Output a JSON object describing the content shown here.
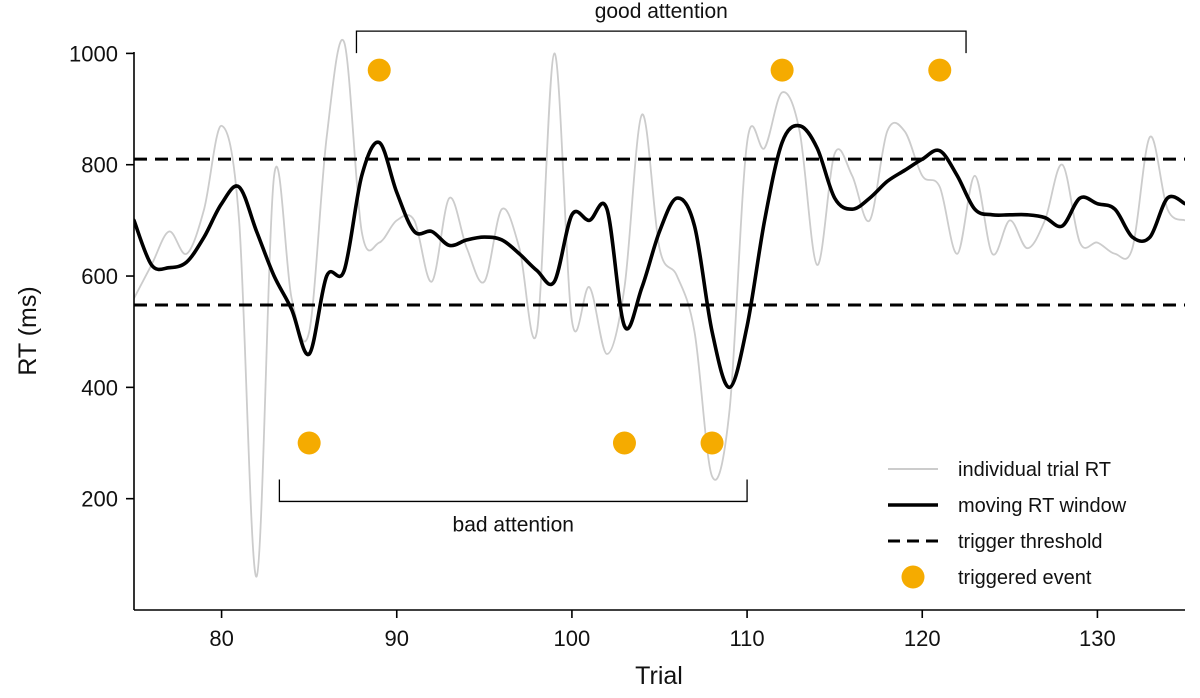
{
  "chart_data": {
    "type": "line",
    "xlabel": "Trial",
    "ylabel": "RT (ms)",
    "xlim": [
      75,
      135
    ],
    "ylim": [
      0,
      1060
    ],
    "xticks": [
      80,
      90,
      100,
      110,
      120,
      130
    ],
    "xtick_labels": [
      "80",
      "90",
      "100",
      "110",
      "120",
      "130"
    ],
    "yticks": [
      200,
      400,
      600,
      800,
      1000
    ],
    "ytick_labels": [
      "200",
      "400",
      "600",
      "800",
      "1000"
    ],
    "grid": false,
    "legend_position": "bottom-right",
    "colors": {
      "individual": "#cccccc",
      "moving": "#000000",
      "threshold": "#000000",
      "event": "#f5ab00"
    },
    "series": [
      {
        "name": "individual trial RT",
        "style": "thin-gray",
        "x": [
          75,
          76,
          77,
          78,
          79,
          80,
          81,
          82,
          83,
          84,
          85,
          86,
          87,
          88,
          89,
          90,
          91,
          92,
          93,
          94,
          95,
          96,
          97,
          98,
          99,
          100,
          101,
          102,
          103,
          104,
          105,
          106,
          107,
          108,
          109,
          110,
          111,
          112,
          113,
          114,
          115,
          116,
          117,
          118,
          119,
          120,
          121,
          122,
          123,
          124,
          125,
          126,
          127,
          128,
          129,
          130,
          131,
          132,
          133,
          134,
          135
        ],
        "y": [
          560,
          620,
          680,
          640,
          720,
          870,
          700,
          60,
          780,
          560,
          500,
          850,
          1020,
          680,
          660,
          700,
          700,
          590,
          740,
          650,
          590,
          720,
          650,
          500,
          1000,
          520,
          580,
          460,
          580,
          890,
          650,
          600,
          500,
          240,
          360,
          840,
          830,
          930,
          860,
          620,
          820,
          780,
          700,
          860,
          860,
          780,
          760,
          640,
          780,
          640,
          700,
          650,
          700,
          800,
          660,
          660,
          640,
          650,
          850,
          720,
          700
        ]
      },
      {
        "name": "moving RT window",
        "style": "thick-black",
        "x": [
          75,
          76,
          77,
          78,
          79,
          80,
          81,
          82,
          83,
          84,
          85,
          86,
          87,
          88,
          89,
          90,
          91,
          92,
          93,
          94,
          95,
          96,
          97,
          98,
          99,
          100,
          101,
          102,
          103,
          104,
          105,
          106,
          107,
          108,
          109,
          110,
          111,
          112,
          113,
          114,
          115,
          116,
          117,
          118,
          119,
          120,
          121,
          122,
          123,
          124,
          125,
          126,
          127,
          128,
          129,
          130,
          131,
          132,
          133,
          134,
          135
        ],
        "y": [
          700,
          620,
          615,
          625,
          670,
          730,
          760,
          680,
          600,
          540,
          460,
          600,
          610,
          780,
          840,
          750,
          680,
          680,
          655,
          665,
          670,
          665,
          640,
          610,
          590,
          710,
          700,
          720,
          510,
          580,
          680,
          740,
          690,
          500,
          400,
          510,
          700,
          840,
          870,
          830,
          740,
          720,
          740,
          770,
          790,
          810,
          825,
          780,
          720,
          710,
          710,
          710,
          705,
          690,
          740,
          730,
          720,
          670,
          670,
          740,
          730
        ]
      }
    ],
    "thresholds": [
      {
        "name": "trigger threshold",
        "y": 810
      },
      {
        "name": "trigger threshold",
        "y": 548
      }
    ],
    "events": {
      "name": "triggered event",
      "points": [
        {
          "x": 89,
          "y": 970
        },
        {
          "x": 112,
          "y": 970
        },
        {
          "x": 121,
          "y": 970
        },
        {
          "x": 85,
          "y": 300
        },
        {
          "x": 103,
          "y": 300
        },
        {
          "x": 108,
          "y": 300
        }
      ]
    },
    "annotations": [
      {
        "text": "good attention",
        "x_start": 87.7,
        "x_end": 122.5,
        "y": 1040,
        "side": "top"
      },
      {
        "text": "bad attention",
        "x_start": 83.3,
        "x_end": 110,
        "y": 195,
        "side": "bottom"
      }
    ],
    "legend": [
      {
        "label": "individual trial RT",
        "kind": "thin-gray"
      },
      {
        "label": "moving RT window",
        "kind": "thick-black"
      },
      {
        "label": "trigger threshold",
        "kind": "dashed"
      },
      {
        "label": "triggered event",
        "kind": "dot"
      }
    ]
  }
}
